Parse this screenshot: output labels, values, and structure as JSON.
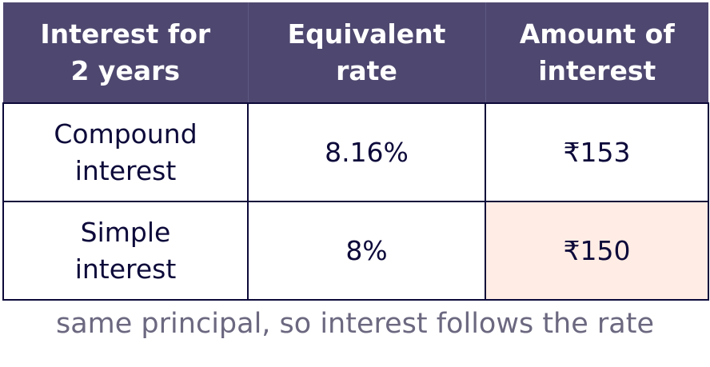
{
  "table": {
    "header": [
      [
        "Interest for",
        "2 years"
      ],
      [
        "Equivalent",
        "rate"
      ],
      [
        "Amount of",
        "interest"
      ]
    ],
    "rows": [
      [
        [
          "Compound",
          "interest"
        ],
        "8.16%",
        "₹153"
      ],
      [
        [
          "Simple",
          "interest"
        ],
        "8%",
        "₹150"
      ]
    ]
  },
  "caption": "same principal, so interest follows the rate"
}
